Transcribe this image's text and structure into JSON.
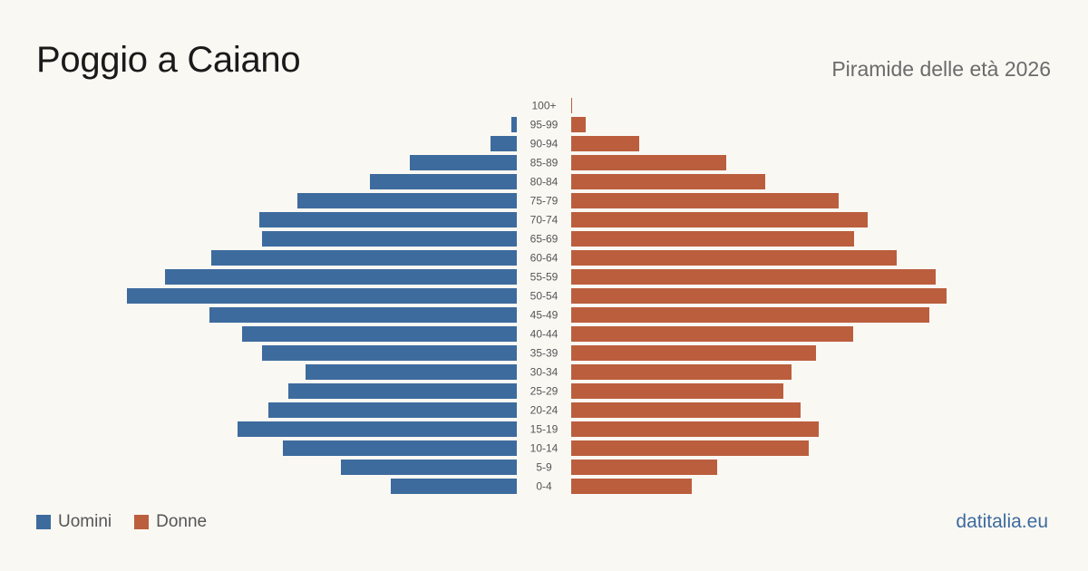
{
  "header": {
    "title": "Poggio a Caiano",
    "subtitle": "Piramide delle età 2026"
  },
  "legend": {
    "men_label": "Uomini",
    "women_label": "Donne"
  },
  "brand": "datitalia.eu",
  "colors": {
    "men": "#3d6b9e",
    "women": "#bb5e3e",
    "background": "#faf8f3",
    "brand": "#3d6b9e"
  },
  "chart_data": {
    "type": "bar",
    "orientation": "horizontal",
    "title": "Poggio a Caiano",
    "subtitle": "Piramide delle età 2026",
    "categories": [
      "100+",
      "95-99",
      "90-94",
      "85-89",
      "80-84",
      "75-79",
      "70-74",
      "65-69",
      "60-64",
      "55-59",
      "50-54",
      "45-49",
      "40-44",
      "35-39",
      "30-34",
      "25-29",
      "20-24",
      "15-19",
      "10-14",
      "5-9",
      "0-4"
    ],
    "series": [
      {
        "name": "Uomini",
        "values": [
          0,
          6,
          29,
          118,
          162,
          242,
          284,
          281,
          337,
          388,
          430,
          339,
          303,
          281,
          233,
          252,
          274,
          308,
          258,
          194,
          139
        ]
      },
      {
        "name": "Donne",
        "values": [
          1,
          16,
          75,
          171,
          214,
          295,
          327,
          312,
          359,
          402,
          414,
          395,
          311,
          270,
          243,
          234,
          253,
          273,
          262,
          161,
          133
        ]
      }
    ],
    "grid": false,
    "legend_position": "bottom-left"
  }
}
